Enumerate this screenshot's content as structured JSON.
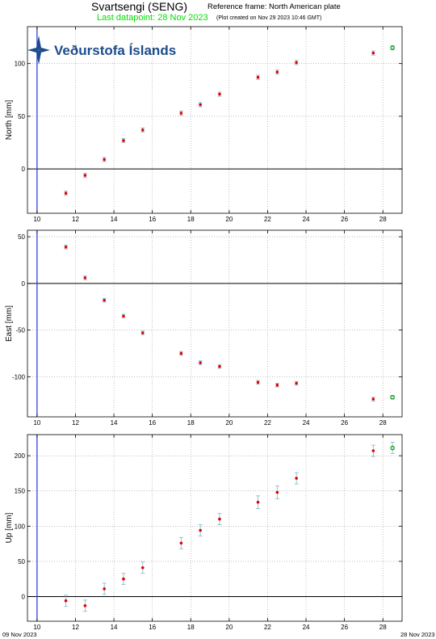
{
  "header": {
    "title": "Svartsengi (SENG)",
    "reference_frame": "Reference frame: North American plate",
    "last_datapoint": "Last datapoint: 28 Nov 2023",
    "plot_created": "(Plot created on Nov 29 2023 10:46 GMT)"
  },
  "logo": {
    "text": "Veðurstofa Íslands",
    "color": "#1d4c8c"
  },
  "footer": {
    "start_date": "09 Nov 2023",
    "end_date": "28 Nov 2023"
  },
  "colors": {
    "point": "#e00000",
    "latest_point": "#00a000",
    "error_bar": "#7fb4c8",
    "vertical_marker": "#2233dd"
  },
  "chart_data": [
    {
      "type": "scatter",
      "ylabel": "North [mm]",
      "xlim": [
        9.5,
        29
      ],
      "ylim": [
        -42,
        135
      ],
      "xticks": [
        10,
        12,
        14,
        16,
        18,
        20,
        22,
        24,
        26,
        28
      ],
      "yticks": [
        0,
        50,
        100
      ],
      "zero_line": 0,
      "vertical_marker_x": 10,
      "grid": true,
      "points": [
        {
          "x": 11.5,
          "y": -23,
          "err": 2
        },
        {
          "x": 12.5,
          "y": -6,
          "err": 2
        },
        {
          "x": 13.5,
          "y": 9,
          "err": 2
        },
        {
          "x": 14.5,
          "y": 27,
          "err": 2
        },
        {
          "x": 15.5,
          "y": 37,
          "err": 2
        },
        {
          "x": 17.5,
          "y": 53,
          "err": 2
        },
        {
          "x": 18.5,
          "y": 61,
          "err": 2
        },
        {
          "x": 19.5,
          "y": 71,
          "err": 2
        },
        {
          "x": 21.5,
          "y": 87,
          "err": 2
        },
        {
          "x": 22.5,
          "y": 92,
          "err": 2
        },
        {
          "x": 23.5,
          "y": 101,
          "err": 2
        },
        {
          "x": 27.5,
          "y": 110,
          "err": 2
        }
      ],
      "latest_point": {
        "x": 28.5,
        "y": 115,
        "err": 2
      }
    },
    {
      "type": "scatter",
      "ylabel": "East [mm]",
      "xlim": [
        9.5,
        29
      ],
      "ylim": [
        -143,
        57
      ],
      "xticks": [
        10,
        12,
        14,
        16,
        18,
        20,
        22,
        24,
        26,
        28
      ],
      "yticks": [
        -100,
        -50,
        0,
        50
      ],
      "zero_line": 0,
      "vertical_marker_x": 10,
      "grid": true,
      "points": [
        {
          "x": 11.5,
          "y": 39,
          "err": 2
        },
        {
          "x": 12.5,
          "y": 6,
          "err": 2
        },
        {
          "x": 13.5,
          "y": -18,
          "err": 2
        },
        {
          "x": 14.5,
          "y": -35,
          "err": 2
        },
        {
          "x": 15.5,
          "y": -53,
          "err": 2
        },
        {
          "x": 17.5,
          "y": -75,
          "err": 2
        },
        {
          "x": 18.5,
          "y": -85,
          "err": 2
        },
        {
          "x": 19.5,
          "y": -89,
          "err": 2
        },
        {
          "x": 21.5,
          "y": -106,
          "err": 2
        },
        {
          "x": 22.5,
          "y": -109,
          "err": 2
        },
        {
          "x": 23.5,
          "y": -107,
          "err": 2
        },
        {
          "x": 27.5,
          "y": -124,
          "err": 2
        }
      ],
      "latest_point": {
        "x": 28.5,
        "y": -122,
        "err": 2
      }
    },
    {
      "type": "scatter",
      "ylabel": "Up [mm]",
      "xlim": [
        9.5,
        29
      ],
      "ylim": [
        -35,
        230
      ],
      "xticks": [
        10,
        12,
        14,
        16,
        18,
        20,
        22,
        24,
        26,
        28
      ],
      "yticks": [
        0,
        50,
        100,
        150,
        200
      ],
      "zero_line": 0,
      "vertical_marker_x": 10,
      "grid": true,
      "points": [
        {
          "x": 11.5,
          "y": -6,
          "err": 8
        },
        {
          "x": 12.5,
          "y": -13,
          "err": 8
        },
        {
          "x": 13.5,
          "y": 11,
          "err": 8
        },
        {
          "x": 14.5,
          "y": 25,
          "err": 8
        },
        {
          "x": 15.5,
          "y": 41,
          "err": 8
        },
        {
          "x": 17.5,
          "y": 76,
          "err": 8
        },
        {
          "x": 18.5,
          "y": 94,
          "err": 8
        },
        {
          "x": 19.5,
          "y": 110,
          "err": 8
        },
        {
          "x": 21.5,
          "y": 134,
          "err": 9
        },
        {
          "x": 22.5,
          "y": 148,
          "err": 9
        },
        {
          "x": 23.5,
          "y": 168,
          "err": 8
        },
        {
          "x": 27.5,
          "y": 207,
          "err": 8
        }
      ],
      "latest_point": {
        "x": 28.5,
        "y": 211,
        "err": 8
      }
    }
  ]
}
